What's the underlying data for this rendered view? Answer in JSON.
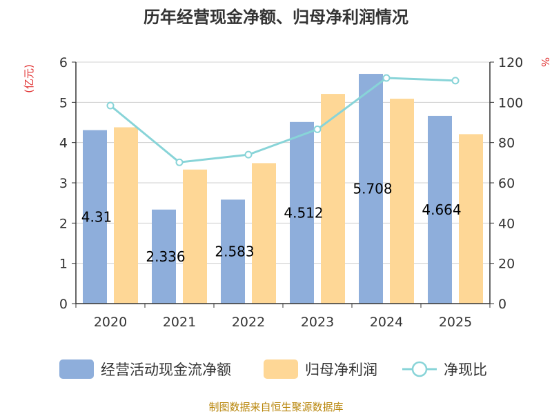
{
  "chart_data": {
    "type": "bar",
    "title": "历年经营现金净额、归母净利润情况",
    "categories": [
      "2020",
      "2021",
      "2022",
      "2023",
      "2024",
      "2025"
    ],
    "series": [
      {
        "name": "经营活动现金流净额",
        "type": "bar",
        "axis": "left",
        "color": "#8eaedb",
        "values": [
          4.31,
          2.336,
          2.583,
          4.512,
          5.708,
          4.664
        ],
        "labels": [
          "4.31",
          "2.336",
          "2.583",
          "4.512",
          "5.708",
          "4.664"
        ]
      },
      {
        "name": "归母净利润",
        "type": "bar",
        "axis": "left",
        "color": "#fed796",
        "values": [
          4.38,
          3.33,
          3.49,
          5.21,
          5.09,
          4.21
        ]
      },
      {
        "name": "净现比",
        "type": "line",
        "axis": "right",
        "color": "#88d4d8",
        "values": [
          98.4,
          70.2,
          74.0,
          86.6,
          112.1,
          110.8
        ]
      }
    ],
    "y_left": {
      "unit": "(亿元)",
      "ticks": [
        "0",
        "1",
        "2",
        "3",
        "4",
        "5",
        "6"
      ],
      "ylim": [
        0,
        6
      ]
    },
    "y_right": {
      "unit": "%",
      "ticks": [
        "0",
        "20",
        "40",
        "60",
        "80",
        "100",
        "120"
      ],
      "ylim": [
        0,
        120
      ]
    },
    "legend_position": "bottom",
    "grid": true
  },
  "source_note": "制图数据来自恒生聚源数据库"
}
